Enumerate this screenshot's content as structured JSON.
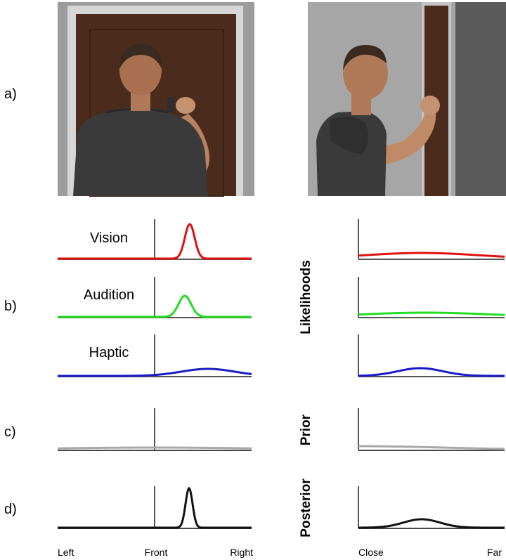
{
  "row_labels": {
    "a": "a)",
    "b": "b)",
    "c": "c)",
    "d": "d)"
  },
  "modalities": {
    "vision": "Vision",
    "audition": "Audition",
    "haptic": "Haptic"
  },
  "vertical_labels": {
    "likelihoods": "Likelihoods",
    "prior": "Prior",
    "posterior": "Posterior"
  },
  "left_axis": {
    "left": "Left",
    "front": "Front",
    "right": "Right"
  },
  "right_axis": {
    "close": "Close",
    "far": "Far"
  },
  "colors": {
    "vision": "#e01010",
    "audition": "#22dd22",
    "haptic": "#1a1ac8",
    "prior": "#a8a8a8",
    "posterior": "#111111",
    "wall": "#9a9a9a",
    "door": "#4a2a1a",
    "shirt": "#333333",
    "skin": "#c08a66"
  },
  "icons": {
    "back_view": "person-knocking-back-view",
    "side_view": "person-knocking-side-view"
  }
}
